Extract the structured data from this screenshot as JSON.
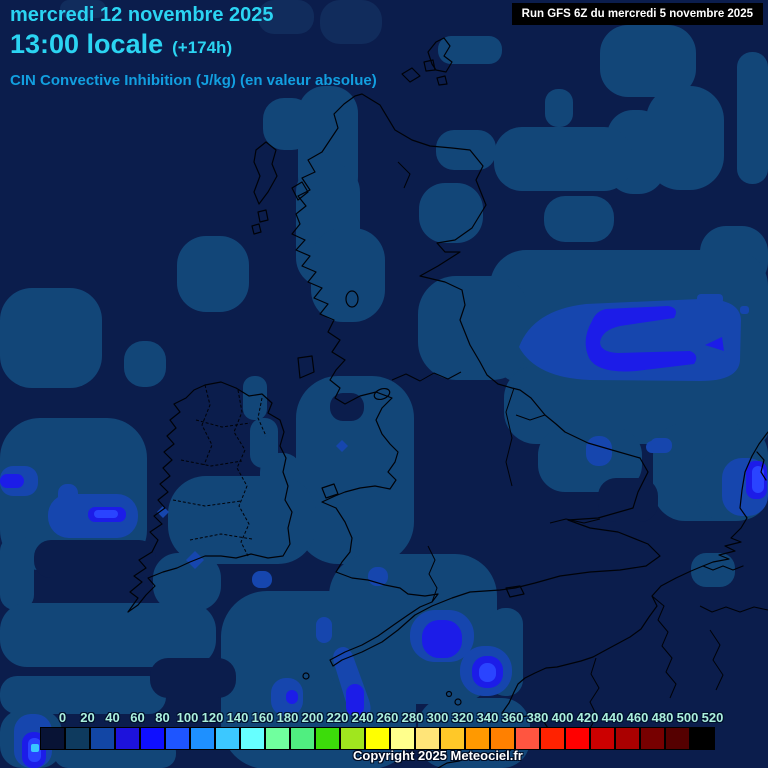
{
  "header": {
    "date": "mercredi 12 novembre 2025",
    "time": "13:00 locale",
    "offset": "(+174h)",
    "subtitle": "CIN Convective Inhibition (J/kg) (en valeur absolue)"
  },
  "run_box": {
    "label": "Run GFS 6Z du mercredi 5 novembre 2025"
  },
  "footer": {
    "copyright": "Copyright 2025 Meteociel.fr"
  },
  "colorbar": {
    "tick_labels": [
      "0",
      "20",
      "40",
      "60",
      "80",
      "100",
      "120",
      "140",
      "160",
      "180",
      "200",
      "220",
      "240",
      "260",
      "280",
      "300",
      "320",
      "340",
      "360",
      "380",
      "400",
      "420",
      "440",
      "460",
      "480",
      "500",
      "520"
    ],
    "colors": [
      "#081335",
      "#0e3a5e",
      "#1246a5",
      "#1d12dc",
      "#0f0fff",
      "#1e55ff",
      "#1e90ff",
      "#3cc8ff",
      "#66ffff",
      "#70ff9e",
      "#50ee80",
      "#3cdc0a",
      "#a0e61e",
      "#ffff00",
      "#ffff8c",
      "#ffe478",
      "#ffc828",
      "#ff9900",
      "#ff8000",
      "#ff5540",
      "#ff2200",
      "#ff0000",
      "#cc0000",
      "#aa0000",
      "#770000",
      "#550000",
      "#000000"
    ]
  },
  "map": {
    "palette": {
      "background": "#0b1d4c",
      "shade_faint": "#112c5c",
      "shade_20": "#124678",
      "shade_60": "#1646ae",
      "shade_100": "#1c1ce8",
      "shade_140": "#2a44ff",
      "shade_dot": "#38c8ff",
      "coastline": "#000208"
    }
  }
}
